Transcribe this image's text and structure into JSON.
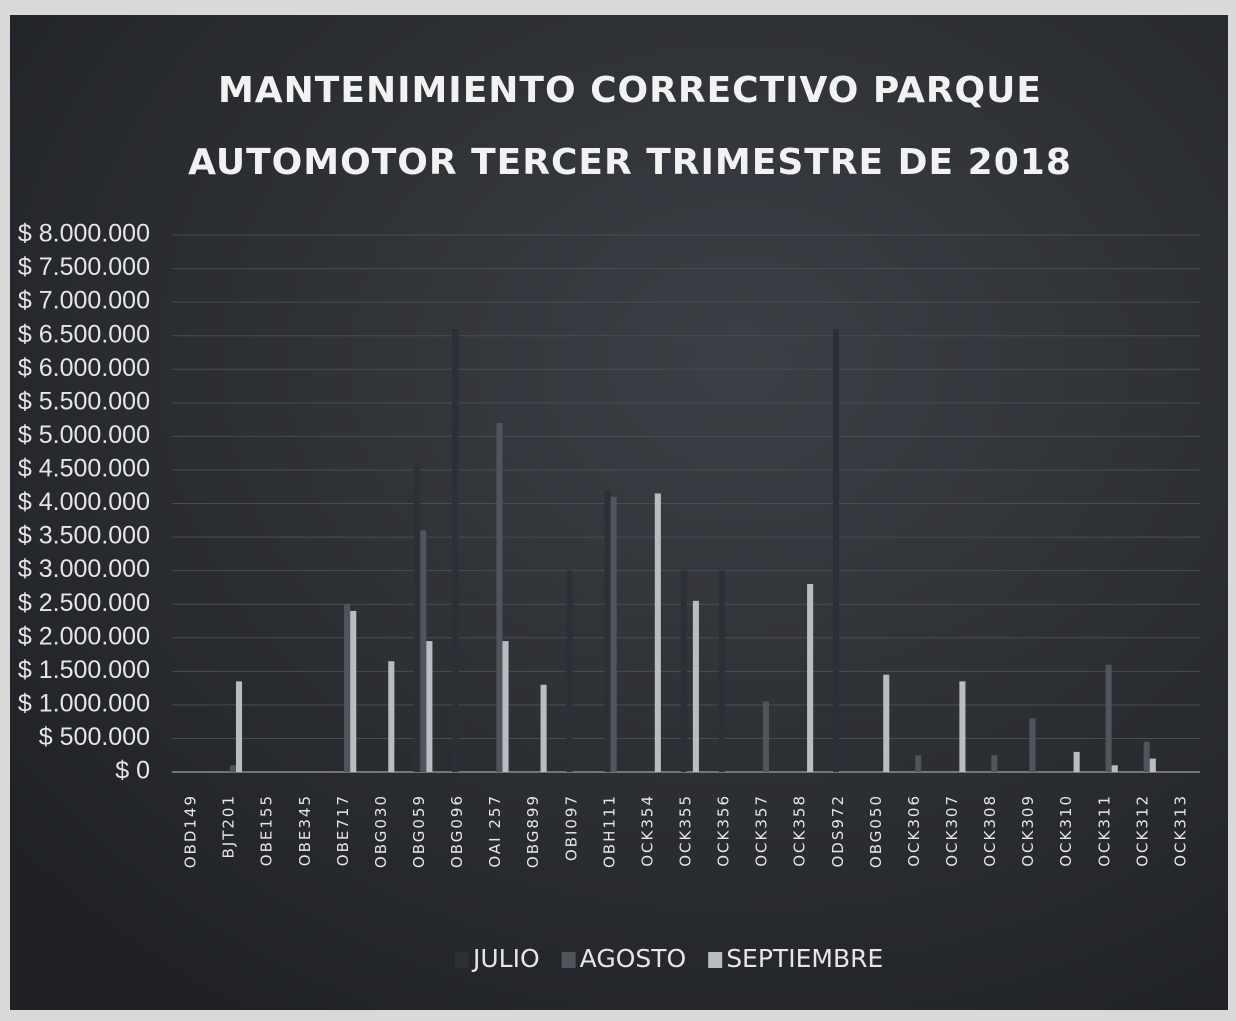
{
  "chart_data": {
    "type": "bar",
    "title": "MANTENIMIENTO CORRECTIVO PARQUE AUTOMOTOR TERCER TRIMESTRE DE 2018",
    "categories": [
      "OBD149",
      "BJT201",
      "OBE155",
      "OBE345",
      "OBE717",
      "OBG030",
      "OBG059",
      "OBG096",
      "OAI 257",
      "OBG899",
      "OBI097",
      "OBH111",
      "OCK354",
      "OCK355",
      "OCK356",
      "OCK357",
      "OCK358",
      "ODS972",
      "OBG050",
      "OCK306",
      "OCK307",
      "OCK308",
      "OCK309",
      "OCK310",
      "OCK311",
      "OCK312",
      "OCK313"
    ],
    "series": [
      {
        "name": "JULIO",
        "color": "#2c2f35",
        "values": [
          0,
          0,
          0,
          0,
          0,
          0,
          4600000,
          6600000,
          0,
          0,
          3000000,
          4200000,
          0,
          3000000,
          3000000,
          0,
          0,
          6600000,
          0,
          0,
          0,
          0,
          0,
          0,
          0,
          0,
          0
        ]
      },
      {
        "name": "AGOSTO",
        "color": "#50545b",
        "values": [
          0,
          100000,
          0,
          0,
          2500000,
          0,
          3600000,
          0,
          5200000,
          0,
          0,
          4100000,
          0,
          0,
          0,
          1050000,
          0,
          0,
          0,
          250000,
          0,
          250000,
          800000,
          0,
          1600000,
          450000,
          0
        ]
      },
      {
        "name": "SEPTIEMBRE",
        "color": "#b9bcc0",
        "values": [
          0,
          1350000,
          0,
          0,
          2400000,
          1650000,
          1950000,
          0,
          1950000,
          1300000,
          0,
          0,
          4150000,
          2550000,
          0,
          0,
          2800000,
          0,
          1450000,
          0,
          1350000,
          0,
          0,
          300000,
          100000,
          200000,
          0
        ]
      }
    ],
    "ylim": [
      0,
      8000000
    ],
    "yticks": [
      {
        "value": 0,
        "label": "$ 0"
      },
      {
        "value": 500000,
        "label": "$ 500.000"
      },
      {
        "value": 1000000,
        "label": "$ 1.000.000"
      },
      {
        "value": 1500000,
        "label": "$ 1.500.000"
      },
      {
        "value": 2000000,
        "label": "$ 2.000.000"
      },
      {
        "value": 2500000,
        "label": "$ 2.500.000"
      },
      {
        "value": 3000000,
        "label": "$ 3.000.000"
      },
      {
        "value": 3500000,
        "label": "$ 3.500.000"
      },
      {
        "value": 4000000,
        "label": "$ 4.000.000"
      },
      {
        "value": 4500000,
        "label": "$ 4.500.000"
      },
      {
        "value": 5000000,
        "label": "$ 5.000.000"
      },
      {
        "value": 5500000,
        "label": "$ 5.500.000"
      },
      {
        "value": 6000000,
        "label": "$ 6.000.000"
      },
      {
        "value": 6500000,
        "label": "$ 6.500.000"
      },
      {
        "value": 7000000,
        "label": "$ 7.000.000"
      },
      {
        "value": 7500000,
        "label": "$ 7.500.000"
      },
      {
        "value": 8000000,
        "label": "$ 8.000.000"
      }
    ],
    "grid": true,
    "legend": "bottom"
  }
}
